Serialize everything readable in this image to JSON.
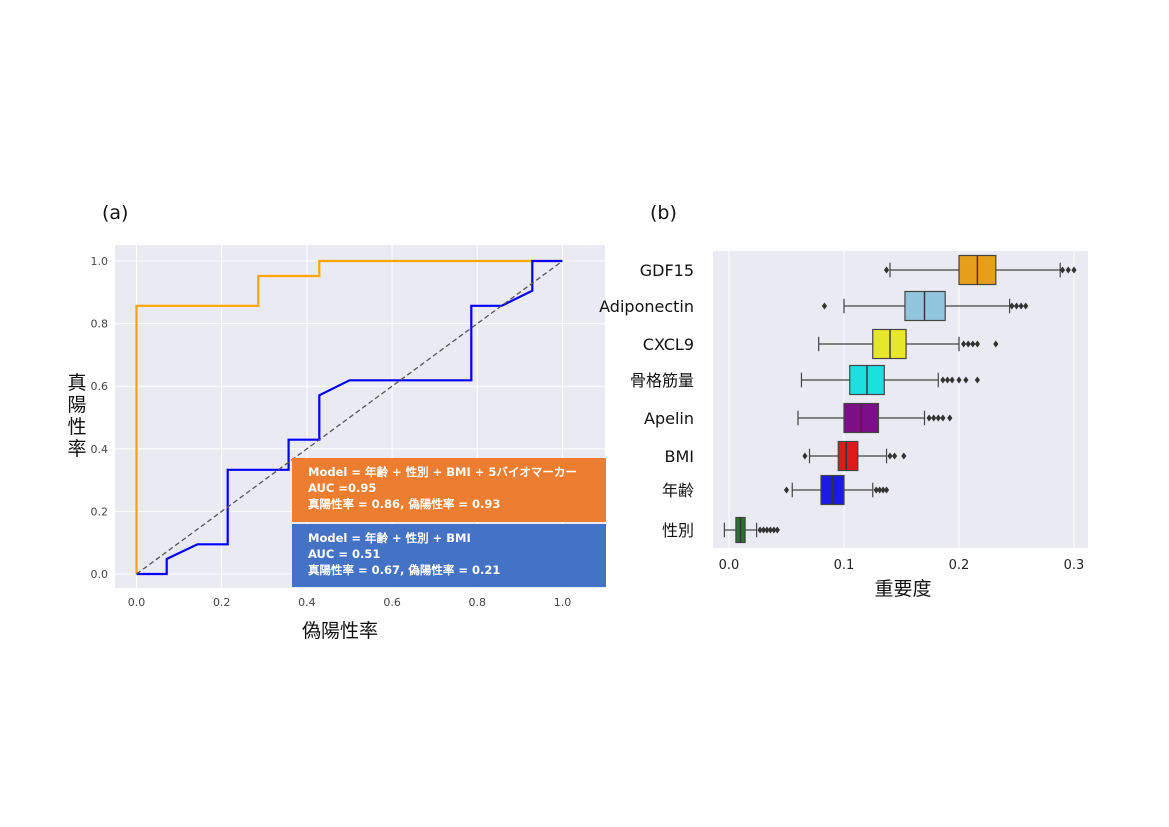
{
  "panel_a": {
    "label": "(a)",
    "boxes": [
      {
        "color": "#ED7D31",
        "lines": [
          "Model = 年齢 + 性別 + BMI + 5バイオマーカー",
          "AUC =0.95",
          "真陽性率 = 0.86, 偽陽性率 = 0.93"
        ]
      },
      {
        "color": "#4472C4",
        "lines": [
          "Model = 年齢 + 性別 + BMI",
          "AUC = 0.51",
          "真陽性率 = 0.67, 偽陽性率 = 0.21"
        ]
      }
    ]
  },
  "panel_b": {
    "label": "(b)"
  },
  "chart_data": [
    {
      "type": "line",
      "title": "",
      "xlabel": "偽陽性率",
      "ylabel": "真陽性率",
      "xlim": [
        0,
        1
      ],
      "ylim": [
        0,
        1
      ],
      "xticks": [
        "0.0",
        "0.2",
        "0.4",
        "0.6",
        "0.8",
        "1.0"
      ],
      "yticks": [
        "0.0",
        "0.2",
        "0.4",
        "0.6",
        "0.8",
        "1.0"
      ],
      "grid": true,
      "series": [
        {
          "color": "#FFA500",
          "x": [
            0,
            0,
            0.286,
            0.286,
            0.429,
            0.429,
            1.0
          ],
          "y": [
            0,
            0.857,
            0.857,
            0.952,
            0.952,
            1.0,
            1.0
          ]
        },
        {
          "color": "#0000FF",
          "x": [
            0,
            0.071,
            0.071,
            0.143,
            0.214,
            0.214,
            0.357,
            0.357,
            0.429,
            0.429,
            0.5,
            0.786,
            0.786,
            0.857,
            0.929,
            0.929,
            1.0
          ],
          "y": [
            0,
            0,
            0.048,
            0.095,
            0.095,
            0.333,
            0.333,
            0.429,
            0.429,
            0.571,
            0.619,
            0.619,
            0.857,
            0.857,
            0.905,
            1.0,
            1.0
          ]
        },
        {
          "color": "#555555",
          "dashed": true,
          "x": [
            0,
            1
          ],
          "y": [
            0,
            1
          ]
        }
      ]
    },
    {
      "type": "box",
      "title": "",
      "xlabel": "重要度",
      "ylabel": "",
      "xlim": [
        -0.01,
        0.32
      ],
      "xticks": [
        "0.0",
        "0.1",
        "0.2",
        "0.3"
      ],
      "grid": true,
      "categories": [
        "GDF15",
        "Adiponectin",
        "CXCL9",
        "骨格筋量",
        "Apelin",
        "BMI",
        "年齢",
        "性別"
      ],
      "boxes": [
        {
          "color": "#E69F1A",
          "min": 0.14,
          "q1": 0.2,
          "median": 0.216,
          "q3": 0.232,
          "max": 0.288,
          "outliers": [
            0.137,
            0.29,
            0.295,
            0.3
          ]
        },
        {
          "color": "#92C6DE",
          "min": 0.1,
          "q1": 0.153,
          "median": 0.17,
          "q3": 0.188,
          "max": 0.244,
          "outliers": [
            0.083,
            0.246,
            0.25,
            0.254,
            0.258
          ]
        },
        {
          "color": "#E6E62A",
          "min": 0.078,
          "q1": 0.125,
          "median": 0.14,
          "q3": 0.154,
          "max": 0.2,
          "outliers": [
            0.204,
            0.208,
            0.212,
            0.216,
            0.232
          ]
        },
        {
          "color": "#1BE0E0",
          "min": 0.063,
          "q1": 0.105,
          "median": 0.12,
          "q3": 0.135,
          "max": 0.182,
          "outliers": [
            0.186,
            0.19,
            0.194,
            0.2,
            0.206,
            0.216
          ]
        },
        {
          "color": "#7A0F87",
          "min": 0.06,
          "q1": 0.1,
          "median": 0.115,
          "q3": 0.13,
          "max": 0.17,
          "outliers": [
            0.174,
            0.178,
            0.182,
            0.186,
            0.192
          ]
        },
        {
          "color": "#E01A1A",
          "min": 0.07,
          "q1": 0.095,
          "median": 0.102,
          "q3": 0.112,
          "max": 0.137,
          "outliers": [
            0.066,
            0.14,
            0.144,
            0.152
          ]
        },
        {
          "color": "#1A1AE0",
          "min": 0.055,
          "q1": 0.08,
          "median": 0.09,
          "q3": 0.1,
          "max": 0.125,
          "outliers": [
            0.05,
            0.128,
            0.131,
            0.134,
            0.137
          ]
        },
        {
          "color": "#1F7A1F",
          "min": -0.004,
          "q1": 0.006,
          "median": 0.01,
          "q3": 0.014,
          "max": 0.024,
          "outliers": [
            0.027,
            0.03,
            0.033,
            0.036,
            0.039,
            0.042
          ]
        }
      ]
    }
  ]
}
